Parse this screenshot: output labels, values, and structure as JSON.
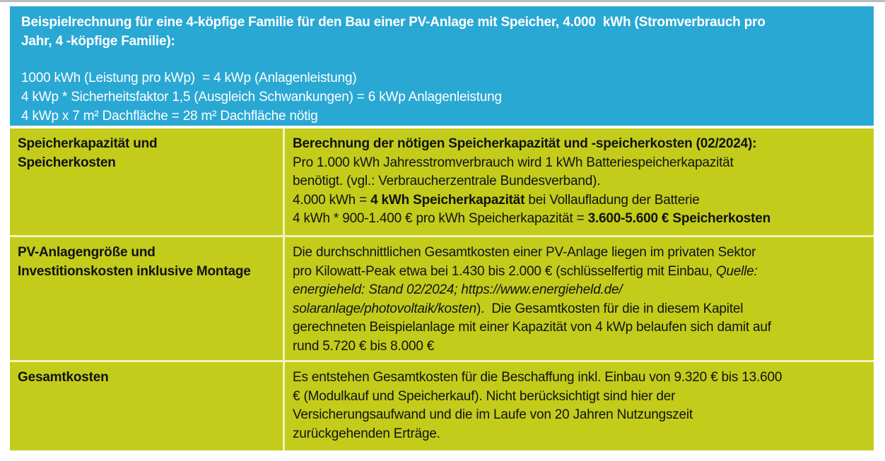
{
  "colors": {
    "header_bg": "#2AA8D4",
    "header_text": "#FFFFFF",
    "cell_bg": "#C3CC1A",
    "divider": "#EFF3C0",
    "body_text": "#121212"
  },
  "header": {
    "title_lines": [
      "Beispielrechnung für eine 4-köpfige Familie für den Bau einer PV-Anlage mit Speicher, 4.000  kWh (Stromverbrauch pro",
      "Jahr, 4 -köpfige Familie):"
    ],
    "calc_lines": [
      "1000 kWh (Leistung pro kWp)  = 4 kWp (Anlagenleistung)",
      "4 kWp * Sicherheitsfaktor 1,5 (Ausgleich Schwankungen) = 6 kWp Anlagenleistung",
      "4 kWp x 7 m² Dachfläche = 28 m² Dachfläche nötig"
    ]
  },
  "table": {
    "rows": [
      {
        "label_lines": [
          "Speicherkapazität und",
          "Speicherkosten"
        ],
        "content": [
          [
            {
              "t": "Berechnung der nötigen Speicherkapazität und -speicherkosten (02/2024):",
              "b": true
            }
          ],
          [
            {
              "t": "Pro 1.000 kWh Jahresstromverbrauch wird 1 kWh Batteriespeicherkapazität"
            }
          ],
          [
            {
              "t": "benötigt. (vgl.: Verbraucherzentrale Bundesverband)."
            }
          ],
          [
            {
              "t": "4.000 kWh = "
            },
            {
              "t": "4 kWh Speicherkapazität",
              "b": true
            },
            {
              "t": " bei Vollaufladung der Batterie"
            }
          ],
          [
            {
              "t": "4 kWh * 900-1.400 € pro kWh Speicherkapazität = "
            },
            {
              "t": "3.600-5.600 € Speicherkosten",
              "b": true
            }
          ]
        ]
      },
      {
        "label_lines": [
          "PV-Anlagengröße und",
          "Investitionskosten inklusive Montage"
        ],
        "content": [
          [
            {
              "t": "Die durchschnittlichen Gesamtkosten einer PV-Anlage liegen im privaten Sektor"
            }
          ],
          [
            {
              "t": "pro Kilowatt-Peak etwa bei 1.430 bis 2.000 € (schlüsselfertig mit Einbau, "
            },
            {
              "t": "Quelle:",
              "i": true
            }
          ],
          [
            {
              "t": "energieheld: Stand 02/2024; https://www.energieheld.de/",
              "i": true
            }
          ],
          [
            {
              "t": "solaranlage/photovoltaik/kosten",
              "i": true
            },
            {
              "t": ").  Die Gesamtkosten für die in diesem Kapitel"
            }
          ],
          [
            {
              "t": "gerechneten Beispielanlage mit einer Kapazität von 4 kWp belaufen sich damit auf"
            }
          ],
          [
            {
              "t": "rund 5.720 € bis 8.000 €"
            }
          ]
        ]
      },
      {
        "label_lines": [
          "Gesamtkosten"
        ],
        "content": [
          [
            {
              "t": "Es entstehen Gesamtkosten für die Beschaffung inkl. Einbau von 9.320 € bis 13.600"
            }
          ],
          [
            {
              "t": "€ (Modulkauf und Speicherkauf). Nicht berücksichtigt sind hier der"
            }
          ],
          [
            {
              "t": "Versicherungsaufwand und die im Laufe von 20 Jahren Nutzungszeit"
            }
          ],
          [
            {
              "t": "zurückgehenden Erträge."
            }
          ]
        ]
      }
    ]
  }
}
